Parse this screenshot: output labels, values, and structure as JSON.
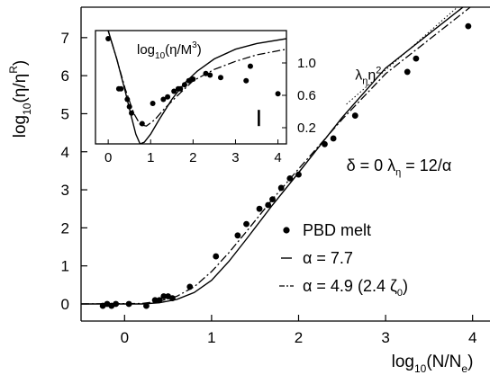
{
  "chart_data": [
    {
      "type": "line",
      "panel": "main",
      "xlabel_base": "log",
      "xlabel_sub": "10",
      "xlabel_arg": "(N/N",
      "xlabel_arg_sub": "e",
      "xlabel_tail": ")",
      "ylabel_base": "log",
      "ylabel_sub": "10",
      "ylabel_arg": "(η/η",
      "ylabel_arg_sup": "R",
      "ylabel_tail": ")",
      "xlim": [
        -0.5,
        4.2
      ],
      "ylim": [
        -0.45,
        7.8
      ],
      "xticks": [
        0,
        1,
        2,
        3,
        4
      ],
      "xtick_labels": [
        "0",
        "1",
        "2",
        "3",
        "4"
      ],
      "yticks": [
        0,
        1,
        2,
        3,
        4,
        5,
        6,
        7
      ],
      "ytick_labels": [
        "0",
        "1",
        "2",
        "3",
        "4",
        "5",
        "6",
        "7"
      ],
      "grid": false,
      "series": [
        {
          "name": "PBD melt",
          "kind": "scatter",
          "x": [
            -0.25,
            -0.2,
            -0.15,
            -0.1,
            0.05,
            0.25,
            0.35,
            0.4,
            0.45,
            0.5,
            0.55,
            0.75,
            1.05,
            1.3,
            1.4,
            1.55,
            1.65,
            1.7,
            1.8,
            1.9,
            2.0,
            2.3,
            2.4,
            2.65,
            3.25,
            3.35,
            3.95
          ],
          "y": [
            -0.05,
            0.0,
            -0.05,
            0.0,
            0.0,
            -0.05,
            0.1,
            0.1,
            0.2,
            0.2,
            0.15,
            0.45,
            1.25,
            1.8,
            2.1,
            2.5,
            2.6,
            2.75,
            3.05,
            3.3,
            3.4,
            4.2,
            4.35,
            4.95,
            6.1,
            6.45,
            7.3
          ]
        },
        {
          "name": "α = 7.7",
          "kind": "line-solid",
          "x": [
            -0.5,
            0.2,
            0.4,
            0.6,
            0.8,
            1.0,
            1.2,
            1.4,
            1.7,
            2.0,
            2.5,
            3.0,
            3.5,
            4.0,
            4.2
          ],
          "y": [
            0.0,
            0.0,
            0.03,
            0.12,
            0.3,
            0.62,
            1.12,
            1.7,
            2.6,
            3.45,
            4.9,
            6.2,
            7.1,
            8.0,
            8.35
          ]
        },
        {
          "name": "α = 4.9  (2.4 ζ0)",
          "kind": "line-dashdot",
          "x": [
            -0.5,
            0.2,
            0.4,
            0.6,
            0.8,
            1.0,
            1.2,
            1.4,
            1.7,
            2.0,
            2.5,
            3.0,
            3.5,
            4.0,
            4.2
          ],
          "y": [
            0.0,
            0.01,
            0.07,
            0.2,
            0.45,
            0.85,
            1.35,
            1.9,
            2.75,
            3.55,
            4.85,
            6.05,
            6.95,
            7.85,
            8.2
          ]
        },
        {
          "name": "λη n²",
          "kind": "line-dotted",
          "x": [
            2.55,
            4.2
          ],
          "y": [
            5.25,
            8.55
          ]
        }
      ],
      "legend": {
        "placement": "right",
        "entries": [
          "PBD melt",
          "α = 7.7",
          "α = 4.9  (2.4 ζ0)"
        ],
        "entry_parts": [
          {
            "text": "PBD melt"
          },
          {
            "text": "α = 7.7"
          },
          {
            "text": "α = 4.9  (2.4 ζ",
            "sub": "0",
            "tail": ")"
          }
        ]
      },
      "annotations": [
        {
          "text": "δ = 0  λ",
          "sub": "η",
          "tail": " = 12/α",
          "x": 2.55,
          "y": 3.5
        },
        {
          "text": "λ",
          "sub": "η",
          "tail": "n",
          "sup": "2",
          "x": 2.65,
          "y": 5.9
        }
      ]
    },
    {
      "type": "line",
      "panel": "inset",
      "title_base": "log",
      "title_sub": "10",
      "title_arg": "(η/M",
      "title_sup": "3",
      "title_tail": ")",
      "xlim": [
        -0.3,
        4.2
      ],
      "ylim": [
        0.0,
        1.4
      ],
      "xticks": [
        0,
        1,
        2,
        3,
        4
      ],
      "xtick_labels": [
        "0",
        "1",
        "2",
        "3",
        "4"
      ],
      "yticks": [
        0.2,
        0.6,
        1.0
      ],
      "ytick_labels": [
        "0.2",
        "0.6",
        "1.0"
      ],
      "yaxis_side": "right",
      "series": [
        {
          "name": "data",
          "kind": "scatter",
          "x": [
            0.0,
            0.25,
            0.3,
            0.45,
            0.5,
            0.55,
            0.8,
            1.05,
            1.3,
            1.4,
            1.55,
            1.65,
            1.7,
            1.8,
            1.9,
            2.0,
            2.3,
            2.4,
            2.65,
            3.25,
            3.35,
            4.0
          ],
          "y": [
            1.3,
            0.68,
            0.68,
            0.55,
            0.46,
            0.38,
            0.25,
            0.5,
            0.55,
            0.58,
            0.65,
            0.68,
            0.68,
            0.73,
            0.78,
            0.8,
            0.87,
            0.85,
            0.82,
            0.78,
            0.96,
            0.62
          ]
        },
        {
          "name": "solid",
          "kind": "line-solid",
          "x": [
            -0.3,
            0.0,
            0.2,
            0.4,
            0.55,
            0.65,
            0.75,
            0.85,
            1.0,
            1.2,
            1.5,
            1.8,
            2.1,
            2.5,
            3.0,
            3.5,
            4.2
          ],
          "y": [
            1.8,
            1.4,
            1.05,
            0.65,
            0.33,
            0.12,
            0.0,
            0.02,
            0.12,
            0.3,
            0.55,
            0.75,
            0.9,
            1.05,
            1.17,
            1.24,
            1.3
          ]
        },
        {
          "name": "dashdot",
          "kind": "line-dashdot",
          "x": [
            -0.3,
            0.0,
            0.2,
            0.4,
            0.6,
            0.75,
            0.9,
            1.1,
            1.3,
            1.6,
            2.0,
            2.5,
            3.0,
            3.5,
            4.2
          ],
          "y": [
            1.8,
            1.4,
            1.05,
            0.68,
            0.38,
            0.24,
            0.22,
            0.3,
            0.42,
            0.58,
            0.78,
            0.92,
            1.02,
            1.1,
            1.17
          ]
        }
      ],
      "error_bar": {
        "x": 3.55,
        "y_low": 0.22,
        "y_high": 0.42
      }
    }
  ]
}
